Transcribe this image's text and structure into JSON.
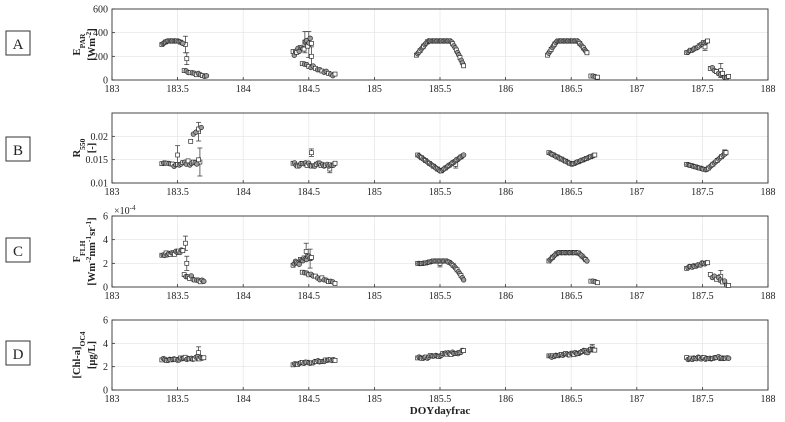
{
  "figure": {
    "xlabel": "DOYdayfrac"
  },
  "chart_data": [
    {
      "type": "scatter",
      "panel": "A",
      "ylabel_line1": "E",
      "ylabel_sub1": "PAR",
      "ylabel_line2": "[Wm",
      "ylabel_sup2": "-2",
      "ylabel_end2": "]",
      "xlim": [
        183,
        188
      ],
      "ylim": [
        0,
        600
      ],
      "xticks": [
        "183",
        "183.5",
        "184",
        "184.5",
        "185",
        "185.5",
        "186",
        "186.5",
        "187",
        "187.5",
        "188"
      ],
      "yticks": [
        "0",
        "200",
        "400",
        "600"
      ],
      "grid": true,
      "segments": [
        {
          "shape": "arch",
          "x0": 183.38,
          "x1": 183.54,
          "peak": 330,
          "start": 300,
          "end": 310,
          "n": 18
        },
        {
          "shape": "line",
          "x0": 183.55,
          "x1": 183.72,
          "y0": 80,
          "y1": 30,
          "n": 12,
          "jitter": 12
        },
        {
          "shape": "line",
          "x0": 184.38,
          "x1": 184.52,
          "y0": 230,
          "y1": 330,
          "n": 16,
          "jitter": 40
        },
        {
          "shape": "line",
          "x0": 184.45,
          "x1": 184.7,
          "y0": 140,
          "y1": 40,
          "n": 16,
          "jitter": 15
        },
        {
          "shape": "arch",
          "x0": 185.32,
          "x1": 185.68,
          "peak": 330,
          "start": 210,
          "end": 120,
          "n": 40
        },
        {
          "shape": "arch",
          "x0": 186.32,
          "x1": 186.62,
          "peak": 330,
          "start": 210,
          "end": 230,
          "n": 34
        },
        {
          "shape": "line",
          "x0": 186.65,
          "x1": 186.7,
          "y0": 35,
          "y1": 25,
          "n": 4,
          "jitter": 3
        },
        {
          "shape": "line",
          "x0": 187.38,
          "x1": 187.54,
          "y0": 230,
          "y1": 330,
          "n": 16,
          "jitter": 8
        },
        {
          "shape": "line",
          "x0": 187.56,
          "x1": 187.7,
          "y0": 100,
          "y1": 20,
          "n": 10,
          "jitter": 25
        }
      ],
      "errorbars": [
        {
          "x": 183.56,
          "y": 300,
          "err": 70
        },
        {
          "x": 183.57,
          "y": 180,
          "err": 50
        },
        {
          "x": 184.47,
          "y": 320,
          "err": 90
        },
        {
          "x": 184.5,
          "y": 300,
          "err": 110
        },
        {
          "x": 184.52,
          "y": 200,
          "err": 80
        },
        {
          "x": 187.52,
          "y": 280,
          "err": 30
        },
        {
          "x": 187.64,
          "y": 80,
          "err": 60
        }
      ]
    },
    {
      "type": "scatter",
      "panel": "B",
      "ylabel_line1": "R",
      "ylabel_sub1": "550",
      "ylabel_line2": "[-]",
      "ylabel_sup2": "",
      "ylabel_end2": "",
      "xlim": [
        183,
        188
      ],
      "ylim": [
        0.01,
        0.025
      ],
      "xticks": [
        "183",
        "183.5",
        "184",
        "184.5",
        "185",
        "185.5",
        "186",
        "186.5",
        "187",
        "187.5",
        "188"
      ],
      "yticks": [
        "0.01",
        "0.015",
        "0.02"
      ],
      "grid": true,
      "segments": [
        {
          "shape": "line",
          "x0": 183.38,
          "x1": 183.66,
          "y0": 0.0138,
          "y1": 0.0145,
          "n": 22,
          "jitter": 0.0006
        },
        {
          "shape": "line",
          "x0": 183.6,
          "x1": 183.68,
          "y0": 0.019,
          "y1": 0.0225,
          "n": 5,
          "jitter": 0.001
        },
        {
          "shape": "line",
          "x0": 184.38,
          "x1": 184.7,
          "y0": 0.014,
          "y1": 0.014,
          "n": 28,
          "jitter": 0.0005
        },
        {
          "shape": "vee",
          "x0": 185.33,
          "x1": 185.68,
          "start": 0.016,
          "low": 0.0125,
          "end": 0.016,
          "n": 36
        },
        {
          "shape": "vee",
          "x0": 186.33,
          "x1": 186.68,
          "start": 0.0165,
          "low": 0.014,
          "end": 0.016,
          "n": 34
        },
        {
          "shape": "vee",
          "x0": 187.38,
          "x1": 187.68,
          "start": 0.014,
          "low": 0.0128,
          "end": 0.0165,
          "n": 28
        }
      ],
      "errorbars": [
        {
          "x": 183.5,
          "y": 0.016,
          "err": 0.002
        },
        {
          "x": 183.66,
          "y": 0.021,
          "err": 0.002
        },
        {
          "x": 183.67,
          "y": 0.0145,
          "err": 0.003
        },
        {
          "x": 184.52,
          "y": 0.0165,
          "err": 0.0008
        },
        {
          "x": 184.66,
          "y": 0.013,
          "err": 0.0008
        },
        {
          "x": 185.62,
          "y": 0.014,
          "err": 0.0008
        },
        {
          "x": 187.67,
          "y": 0.0165,
          "err": 0.0006
        }
      ]
    },
    {
      "type": "scatter",
      "panel": "C",
      "ylabel_line1": "F",
      "ylabel_sub1": "FLH",
      "ylabel_line2": "[Wm",
      "ylabel_sup2": "-2",
      "ylabel_end2": "nm",
      "ylabel_extra": "-1",
      "ylabel_extra2": "sr",
      "ylabel_extra3": "-1",
      "ylabel_tail": "]",
      "multiplier": "×10",
      "multiplier_exp": "-4",
      "xlim": [
        183,
        188
      ],
      "ylim": [
        0,
        6
      ],
      "xticks": [
        "183",
        "183.5",
        "184",
        "184.5",
        "185",
        "185.5",
        "186",
        "186.5",
        "187",
        "187.5",
        "188"
      ],
      "yticks": [
        "0",
        "2",
        "4",
        "6"
      ],
      "grid": true,
      "segments": [
        {
          "shape": "line",
          "x0": 183.38,
          "x1": 183.54,
          "y0": 2.8,
          "y1": 3.0,
          "n": 16,
          "jitter": 0.2
        },
        {
          "shape": "line",
          "x0": 183.55,
          "x1": 183.7,
          "y0": 1.0,
          "y1": 0.5,
          "n": 12,
          "jitter": 0.2
        },
        {
          "shape": "line",
          "x0": 184.38,
          "x1": 184.52,
          "y0": 1.9,
          "y1": 2.5,
          "n": 16,
          "jitter": 0.3
        },
        {
          "shape": "line",
          "x0": 184.45,
          "x1": 184.7,
          "y0": 1.2,
          "y1": 0.3,
          "n": 16,
          "jitter": 0.15
        },
        {
          "shape": "arch",
          "x0": 185.33,
          "x1": 185.68,
          "peak": 2.2,
          "start": 2.0,
          "end": 0.6,
          "n": 36
        },
        {
          "shape": "arch",
          "x0": 186.33,
          "x1": 186.62,
          "peak": 2.9,
          "start": 2.2,
          "end": 2.2,
          "n": 32
        },
        {
          "shape": "line",
          "x0": 186.65,
          "x1": 186.7,
          "y0": 0.5,
          "y1": 0.4,
          "n": 4,
          "jitter": 0.05
        },
        {
          "shape": "line",
          "x0": 187.38,
          "x1": 187.54,
          "y0": 1.6,
          "y1": 2.1,
          "n": 16,
          "jitter": 0.1
        },
        {
          "shape": "line",
          "x0": 187.56,
          "x1": 187.7,
          "y0": 1.0,
          "y1": 0.2,
          "n": 10,
          "jitter": 0.25
        }
      ],
      "errorbars": [
        {
          "x": 183.56,
          "y": 3.7,
          "err": 0.6
        },
        {
          "x": 183.57,
          "y": 2.0,
          "err": 0.6
        },
        {
          "x": 184.48,
          "y": 3.0,
          "err": 0.7
        },
        {
          "x": 184.51,
          "y": 2.4,
          "err": 0.8
        },
        {
          "x": 185.5,
          "y": 2.0,
          "err": 0.3
        },
        {
          "x": 187.64,
          "y": 0.9,
          "err": 0.5
        }
      ]
    },
    {
      "type": "scatter",
      "panel": "D",
      "ylabel_line1": "[Chl-a]",
      "ylabel_sub1": "OC4",
      "ylabel_line2": "[μg/L]",
      "ylabel_sup2": "",
      "ylabel_end2": "",
      "xlim": [
        183,
        188
      ],
      "ylim": [
        0,
        6
      ],
      "xticks": [
        "183",
        "183.5",
        "184",
        "184.5",
        "185",
        "185.5",
        "186",
        "186.5",
        "187",
        "187.5",
        "188"
      ],
      "yticks": [
        "0",
        "2",
        "4",
        "6"
      ],
      "grid": true,
      "segments": [
        {
          "shape": "line",
          "x0": 183.38,
          "x1": 183.7,
          "y0": 2.6,
          "y1": 2.8,
          "n": 28,
          "jitter": 0.15
        },
        {
          "shape": "line",
          "x0": 184.38,
          "x1": 184.7,
          "y0": 2.2,
          "y1": 2.6,
          "n": 28,
          "jitter": 0.1
        },
        {
          "shape": "line",
          "x0": 185.33,
          "x1": 185.68,
          "y0": 2.7,
          "y1": 3.3,
          "n": 34,
          "jitter": 0.15
        },
        {
          "shape": "line",
          "x0": 186.33,
          "x1": 186.68,
          "y0": 2.9,
          "y1": 3.4,
          "n": 34,
          "jitter": 0.15
        },
        {
          "shape": "line",
          "x0": 187.38,
          "x1": 187.7,
          "y0": 2.7,
          "y1": 2.8,
          "n": 30,
          "jitter": 0.12
        }
      ],
      "errorbars": [
        {
          "x": 183.66,
          "y": 3.2,
          "err": 0.5
        },
        {
          "x": 186.66,
          "y": 3.6,
          "err": 0.3
        }
      ]
    }
  ]
}
